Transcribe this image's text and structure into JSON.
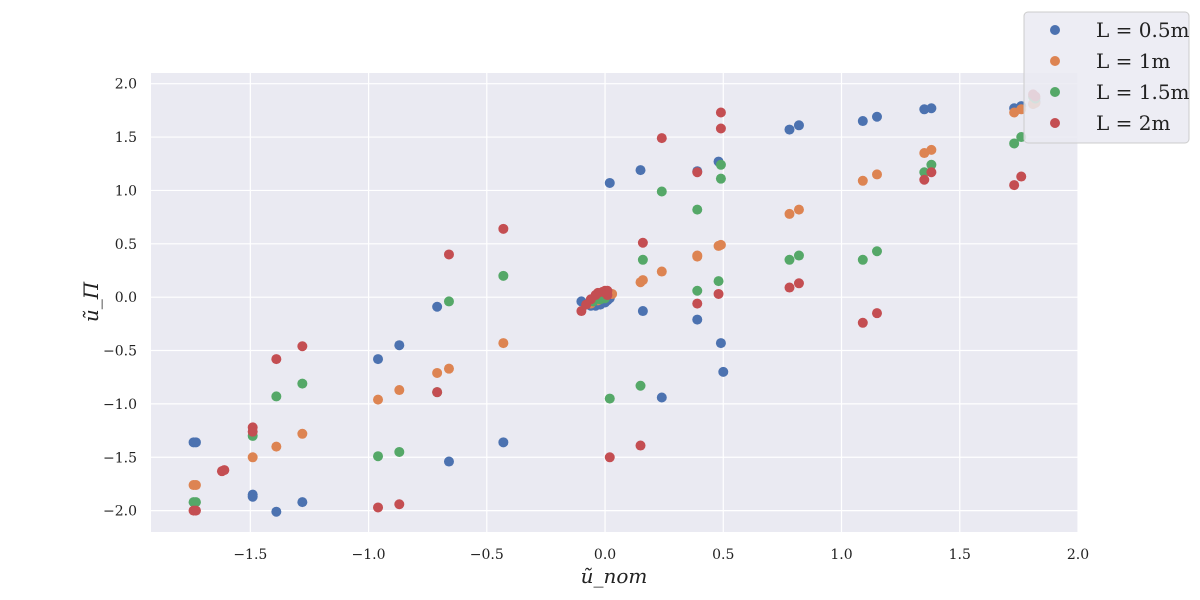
{
  "chart_data": {
    "type": "scatter",
    "title": "",
    "xlabel": "ũ_nom",
    "ylabel": "ũ_Π",
    "xlim": [
      -1.92,
      2.0
    ],
    "ylim": [
      -2.2,
      2.1
    ],
    "xticks": [
      -1.5,
      -1.0,
      -0.5,
      0.0,
      0.5,
      1.0,
      1.5,
      2.0
    ],
    "xtick_labels": [
      "−1.5",
      "−1.0",
      "−0.5",
      "0.0",
      "0.5",
      "1.0",
      "1.5",
      "2.0"
    ],
    "yticks": [
      -2.0,
      -1.5,
      -1.0,
      -0.5,
      0.0,
      0.5,
      1.0,
      1.5,
      2.0
    ],
    "ytick_labels": [
      "−2.0",
      "−1.5",
      "−1.0",
      "−0.5",
      "0.0",
      "0.5",
      "1.0",
      "1.5",
      "2.0"
    ],
    "grid": true,
    "legend_position": "top-right",
    "series": [
      {
        "name": "L = 0.5m",
        "color": "#4c72b0",
        "points": [
          [
            -1.74,
            -1.36
          ],
          [
            -1.73,
            -1.36
          ],
          [
            -1.49,
            -1.85
          ],
          [
            -1.49,
            -1.87
          ],
          [
            -1.39,
            -2.01
          ],
          [
            -1.28,
            -1.92
          ],
          [
            -0.96,
            -0.58
          ],
          [
            -0.87,
            -0.45
          ],
          [
            -0.71,
            -0.09
          ],
          [
            -0.66,
            -1.54
          ],
          [
            -0.43,
            -1.36
          ],
          [
            -0.1,
            -0.04
          ],
          [
            -0.08,
            -0.07
          ],
          [
            -0.06,
            -0.08
          ],
          [
            -0.04,
            -0.08
          ],
          [
            -0.02,
            -0.07
          ],
          [
            0.0,
            -0.05
          ],
          [
            0.01,
            -0.03
          ],
          [
            0.02,
            -0.01
          ],
          [
            0.02,
            1.07
          ],
          [
            0.15,
            1.19
          ],
          [
            0.16,
            -0.13
          ],
          [
            0.24,
            -0.94
          ],
          [
            0.39,
            1.18
          ],
          [
            0.39,
            -0.21
          ],
          [
            0.48,
            1.27
          ],
          [
            0.49,
            -0.43
          ],
          [
            0.5,
            -0.7
          ],
          [
            0.78,
            1.57
          ],
          [
            0.82,
            1.61
          ],
          [
            1.09,
            1.65
          ],
          [
            1.15,
            1.69
          ],
          [
            1.35,
            1.76
          ],
          [
            1.38,
            1.77
          ],
          [
            1.73,
            1.77
          ],
          [
            1.76,
            1.79
          ],
          [
            1.81,
            1.81
          ],
          [
            1.82,
            1.83
          ]
        ]
      },
      {
        "name": "L = 1m",
        "color": "#dd8452",
        "points": [
          [
            -1.74,
            -1.76
          ],
          [
            -1.73,
            -1.76
          ],
          [
            -1.49,
            -1.5
          ],
          [
            -1.39,
            -1.4
          ],
          [
            -1.28,
            -1.28
          ],
          [
            -0.96,
            -0.96
          ],
          [
            -0.87,
            -0.87
          ],
          [
            -0.71,
            -0.71
          ],
          [
            -0.66,
            -0.67
          ],
          [
            -0.43,
            -0.43
          ],
          [
            -0.06,
            -0.06
          ],
          [
            -0.03,
            -0.03
          ],
          [
            0.0,
            0.0
          ],
          [
            0.03,
            0.03
          ],
          [
            0.15,
            0.14
          ],
          [
            0.16,
            0.16
          ],
          [
            0.24,
            0.24
          ],
          [
            0.39,
            0.38
          ],
          [
            0.39,
            0.39
          ],
          [
            0.48,
            0.48
          ],
          [
            0.49,
            0.49
          ],
          [
            0.78,
            0.78
          ],
          [
            0.82,
            0.82
          ],
          [
            1.09,
            1.09
          ],
          [
            1.15,
            1.15
          ],
          [
            1.35,
            1.35
          ],
          [
            1.38,
            1.38
          ],
          [
            1.73,
            1.73
          ],
          [
            1.76,
            1.76
          ],
          [
            1.81,
            1.81
          ],
          [
            1.82,
            1.82
          ]
        ]
      },
      {
        "name": "L = 1.5m",
        "color": "#55a868",
        "points": [
          [
            -1.74,
            -1.92
          ],
          [
            -1.73,
            -1.92
          ],
          [
            -1.49,
            -1.3
          ],
          [
            -1.39,
            -0.93
          ],
          [
            -1.28,
            -0.81
          ],
          [
            -0.96,
            -1.49
          ],
          [
            -0.87,
            -1.45
          ],
          [
            -0.71,
            -0.89
          ],
          [
            -0.66,
            -0.04
          ],
          [
            -0.43,
            0.2
          ],
          [
            -0.05,
            -0.04
          ],
          [
            -0.02,
            -0.02
          ],
          [
            0.0,
            -0.01
          ],
          [
            0.02,
            -0.95
          ],
          [
            0.15,
            -0.83
          ],
          [
            0.16,
            0.35
          ],
          [
            0.24,
            0.99
          ],
          [
            0.39,
            0.82
          ],
          [
            0.39,
            0.06
          ],
          [
            0.48,
            0.15
          ],
          [
            0.49,
            1.24
          ],
          [
            0.49,
            1.11
          ],
          [
            0.78,
            0.35
          ],
          [
            0.82,
            0.39
          ],
          [
            1.09,
            0.35
          ],
          [
            1.15,
            0.43
          ],
          [
            1.35,
            1.17
          ],
          [
            1.38,
            1.24
          ],
          [
            1.73,
            1.44
          ],
          [
            1.76,
            1.5
          ],
          [
            1.81,
            1.88
          ],
          [
            1.82,
            1.86
          ]
        ]
      },
      {
        "name": "L = 2m",
        "color": "#c44e52",
        "points": [
          [
            -1.74,
            -2.0
          ],
          [
            -1.73,
            -2.0
          ],
          [
            -1.62,
            -1.63
          ],
          [
            -1.61,
            -1.62
          ],
          [
            -1.49,
            -1.22
          ],
          [
            -1.49,
            -1.26
          ],
          [
            -1.39,
            -0.58
          ],
          [
            -1.28,
            -0.46
          ],
          [
            -0.96,
            -1.97
          ],
          [
            -0.87,
            -1.94
          ],
          [
            -0.71,
            -0.89
          ],
          [
            -0.66,
            0.4
          ],
          [
            -0.43,
            0.64
          ],
          [
            -0.1,
            -0.13
          ],
          [
            -0.08,
            -0.07
          ],
          [
            -0.06,
            -0.02
          ],
          [
            -0.04,
            0.02
          ],
          [
            -0.03,
            0.04
          ],
          [
            -0.01,
            0.05
          ],
          [
            0.0,
            0.06
          ],
          [
            0.01,
            0.06
          ],
          [
            0.01,
            0.02
          ],
          [
            0.02,
            -1.5
          ],
          [
            0.15,
            -1.39
          ],
          [
            0.16,
            0.51
          ],
          [
            0.24,
            1.49
          ],
          [
            0.39,
            1.17
          ],
          [
            0.39,
            -0.06
          ],
          [
            0.48,
            0.03
          ],
          [
            0.49,
            1.73
          ],
          [
            0.49,
            1.58
          ],
          [
            0.78,
            0.09
          ],
          [
            0.82,
            0.13
          ],
          [
            1.09,
            -0.24
          ],
          [
            1.15,
            -0.15
          ],
          [
            1.35,
            1.1
          ],
          [
            1.38,
            1.17
          ],
          [
            1.73,
            1.05
          ],
          [
            1.76,
            1.13
          ],
          [
            1.81,
            1.9
          ],
          [
            1.82,
            1.88
          ]
        ]
      }
    ]
  }
}
